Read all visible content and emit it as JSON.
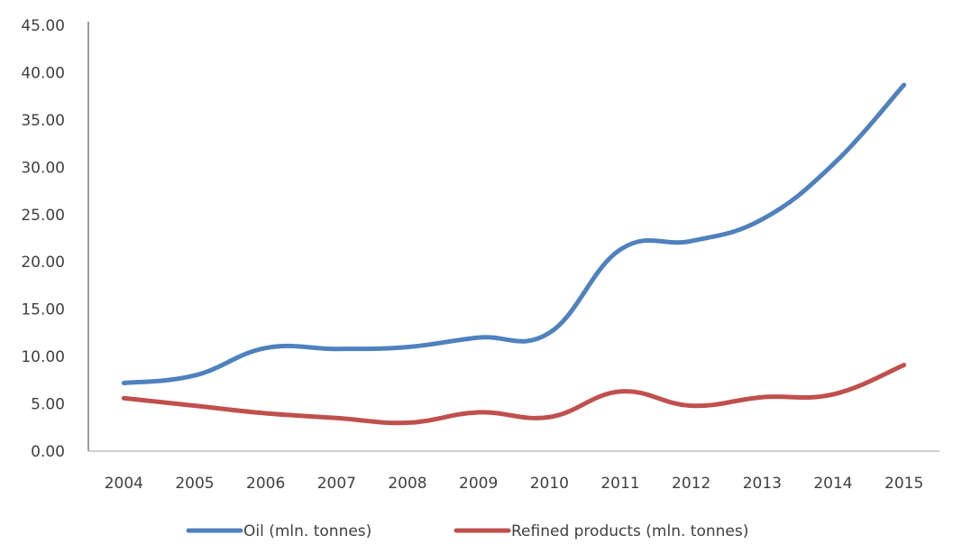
{
  "chart_data": {
    "type": "line",
    "title": "",
    "xlabel": "",
    "ylabel": "",
    "categories": [
      "2004",
      "2005",
      "2006",
      "2007",
      "2008",
      "2009",
      "2010",
      "2011",
      "2012",
      "2013",
      "2014",
      "2015"
    ],
    "ylim": [
      0,
      45
    ],
    "yticks": [
      "0.00",
      "5.00",
      "10.00",
      "15.00",
      "20.00",
      "25.00",
      "30.00",
      "35.00",
      "40.00",
      "45.00"
    ],
    "grid": false,
    "legend_position": "bottom",
    "series": [
      {
        "name": "Oil (mln. tonnes)",
        "color": "#4F81BD",
        "values": [
          7.2,
          8.0,
          10.9,
          10.8,
          11.0,
          12.0,
          12.5,
          21.3,
          22.2,
          24.5,
          30.3,
          38.7
        ]
      },
      {
        "name": "Refined products (mln. tonnes)",
        "color": "#C0504D",
        "values": [
          5.6,
          4.8,
          4.0,
          3.5,
          3.0,
          4.1,
          3.6,
          6.3,
          4.8,
          5.7,
          6.0,
          9.1
        ]
      }
    ]
  }
}
